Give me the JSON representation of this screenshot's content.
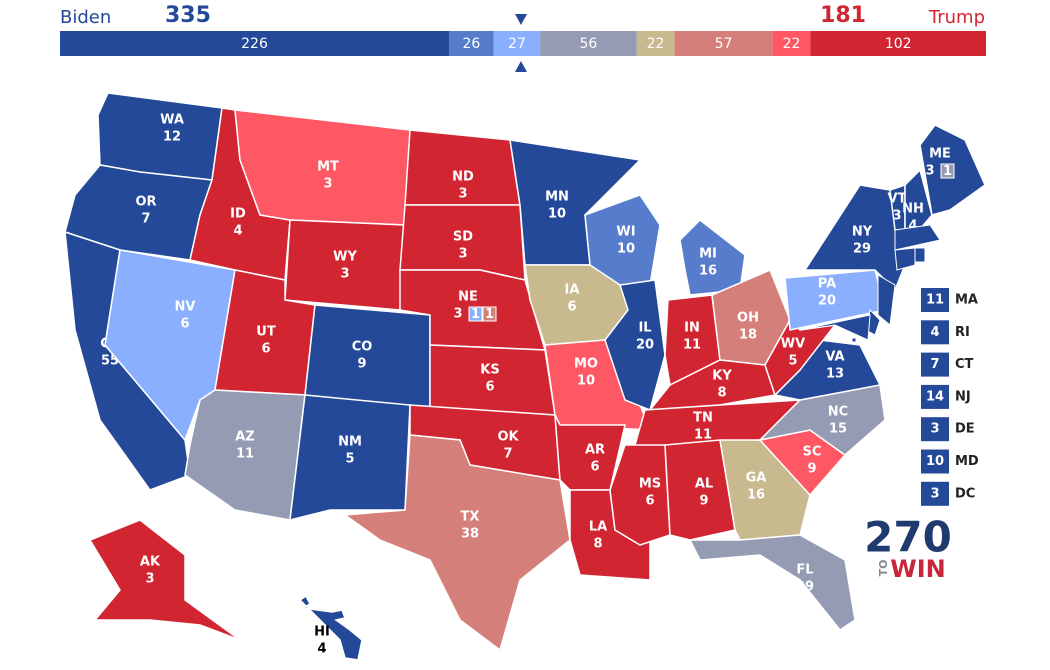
{
  "header": {
    "left_name": "Biden",
    "left_total": 335,
    "right_total": 181,
    "right_name": "Trump"
  },
  "bar": [
    {
      "value": 226,
      "color": "#244999"
    },
    {
      "value": 26,
      "color": "#577ccc"
    },
    {
      "value": 27,
      "color": "#8aafff"
    },
    {
      "value": 56,
      "color": "#949bb3"
    },
    {
      "value": 22,
      "color": "#c8b98e"
    },
    {
      "value": 57,
      "color": "#d47f79"
    },
    {
      "value": 22,
      "color": "#ff5865"
    },
    {
      "value": 102,
      "color": "#d22532"
    }
  ],
  "states": [
    {
      "abbr": "WA",
      "votes": 12,
      "color": "#244999"
    },
    {
      "abbr": "OR",
      "votes": 7,
      "color": "#244999"
    },
    {
      "abbr": "CA",
      "votes": 55,
      "color": "#244999"
    },
    {
      "abbr": "NV",
      "votes": 6,
      "color": "#8aafff"
    },
    {
      "abbr": "ID",
      "votes": 4,
      "color": "#d22532"
    },
    {
      "abbr": "MT",
      "votes": 3,
      "color": "#ff5865"
    },
    {
      "abbr": "WY",
      "votes": 3,
      "color": "#d22532"
    },
    {
      "abbr": "UT",
      "votes": 6,
      "color": "#d22532"
    },
    {
      "abbr": "AZ",
      "votes": 11,
      "color": "#949bb3"
    },
    {
      "abbr": "CO",
      "votes": 9,
      "color": "#244999"
    },
    {
      "abbr": "NM",
      "votes": 5,
      "color": "#244999"
    },
    {
      "abbr": "ND",
      "votes": 3,
      "color": "#d22532"
    },
    {
      "abbr": "SD",
      "votes": 3,
      "color": "#d22532"
    },
    {
      "abbr": "NE",
      "votes": 3,
      "color": "#d22532",
      "splits": [
        {
          "votes": 1,
          "color": "#8aafff"
        },
        {
          "votes": 1,
          "color": "#d47f79"
        }
      ]
    },
    {
      "abbr": "KS",
      "votes": 6,
      "color": "#d22532"
    },
    {
      "abbr": "OK",
      "votes": 7,
      "color": "#d22532"
    },
    {
      "abbr": "TX",
      "votes": 38,
      "color": "#d47f79"
    },
    {
      "abbr": "MN",
      "votes": 10,
      "color": "#244999"
    },
    {
      "abbr": "IA",
      "votes": 6,
      "color": "#c8b98e"
    },
    {
      "abbr": "MO",
      "votes": 10,
      "color": "#ff5865"
    },
    {
      "abbr": "AR",
      "votes": 6,
      "color": "#d22532"
    },
    {
      "abbr": "LA",
      "votes": 8,
      "color": "#d22532"
    },
    {
      "abbr": "WI",
      "votes": 10,
      "color": "#577ccc"
    },
    {
      "abbr": "IL",
      "votes": 20,
      "color": "#244999"
    },
    {
      "abbr": "MI",
      "votes": 16,
      "color": "#577ccc"
    },
    {
      "abbr": "IN",
      "votes": 11,
      "color": "#d22532"
    },
    {
      "abbr": "OH",
      "votes": 18,
      "color": "#d47f79"
    },
    {
      "abbr": "KY",
      "votes": 8,
      "color": "#d22532"
    },
    {
      "abbr": "TN",
      "votes": 11,
      "color": "#d22532"
    },
    {
      "abbr": "MS",
      "votes": 6,
      "color": "#d22532"
    },
    {
      "abbr": "AL",
      "votes": 9,
      "color": "#d22532"
    },
    {
      "abbr": "GA",
      "votes": 16,
      "color": "#c8b98e"
    },
    {
      "abbr": "FL",
      "votes": 29,
      "color": "#949bb3"
    },
    {
      "abbr": "SC",
      "votes": 9,
      "color": "#ff5865"
    },
    {
      "abbr": "NC",
      "votes": 15,
      "color": "#949bb3"
    },
    {
      "abbr": "VA",
      "votes": 13,
      "color": "#244999"
    },
    {
      "abbr": "WV",
      "votes": 5,
      "color": "#d22532"
    },
    {
      "abbr": "PA",
      "votes": 20,
      "color": "#8aafff"
    },
    {
      "abbr": "NY",
      "votes": 29,
      "color": "#244999"
    },
    {
      "abbr": "VT",
      "votes": 3,
      "color": "#244999"
    },
    {
      "abbr": "NH",
      "votes": 4,
      "color": "#244999"
    },
    {
      "abbr": "ME",
      "votes": 3,
      "color": "#244999",
      "splits": [
        {
          "votes": 1,
          "color": "#949bb3"
        }
      ]
    },
    {
      "abbr": "AK",
      "votes": 3,
      "color": "#d22532"
    },
    {
      "abbr": "HI",
      "votes": 4,
      "color": "#244999"
    }
  ],
  "callouts": [
    {
      "abbr": "MA",
      "votes": 11,
      "color": "#244999"
    },
    {
      "abbr": "RI",
      "votes": 4,
      "color": "#244999"
    },
    {
      "abbr": "CT",
      "votes": 7,
      "color": "#244999"
    },
    {
      "abbr": "NJ",
      "votes": 14,
      "color": "#244999"
    },
    {
      "abbr": "DE",
      "votes": 3,
      "color": "#244999"
    },
    {
      "abbr": "MD",
      "votes": 10,
      "color": "#244999"
    },
    {
      "abbr": "DC",
      "votes": 3,
      "color": "#244999"
    }
  ],
  "logo": {
    "number": "270",
    "to": "TO",
    "win": "WIN"
  }
}
